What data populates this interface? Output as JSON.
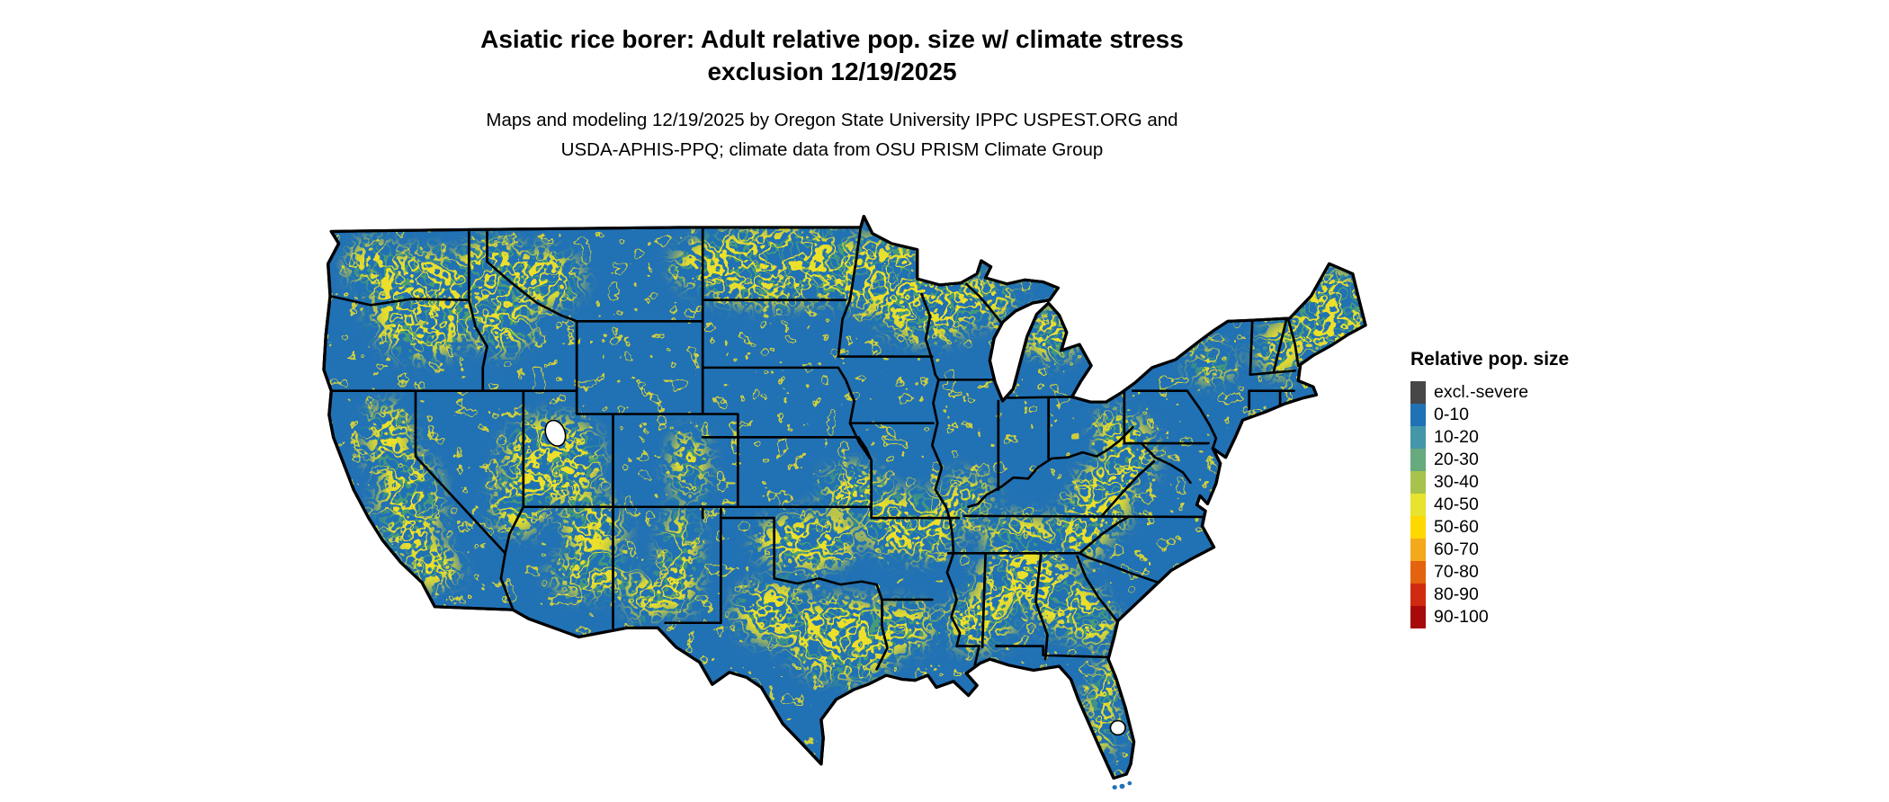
{
  "header": {
    "title_line1": "Asiatic rice borer: Adult relative pop. size w/ climate stress",
    "title_line2": "exclusion 12/19/2025",
    "subtitle_line1": "Maps and modeling 12/19/2025 by Oregon State University IPPC USPEST.ORG and",
    "subtitle_line2": "USDA-APHIS-PPQ; climate data from OSU PRISM Climate Group"
  },
  "legend": {
    "title": "Relative pop. size",
    "items": [
      {
        "label": "excl.-severe",
        "color": "#474747"
      },
      {
        "label": "0-10",
        "color": "#2171b5"
      },
      {
        "label": "10-20",
        "color": "#4496a9"
      },
      {
        "label": "20-30",
        "color": "#66aa7d"
      },
      {
        "label": "30-40",
        "color": "#a8c34d"
      },
      {
        "label": "40-50",
        "color": "#e7e32f"
      },
      {
        "label": "50-60",
        "color": "#ffd800"
      },
      {
        "label": "60-70",
        "color": "#f4a81c"
      },
      {
        "label": "70-80",
        "color": "#e46310"
      },
      {
        "label": "80-90",
        "color": "#d02b10"
      },
      {
        "label": "90-100",
        "color": "#a70a0a"
      }
    ]
  },
  "map": {
    "base_color": "#2171b5",
    "border_color": "#000000",
    "background_color": "#ffffff"
  }
}
